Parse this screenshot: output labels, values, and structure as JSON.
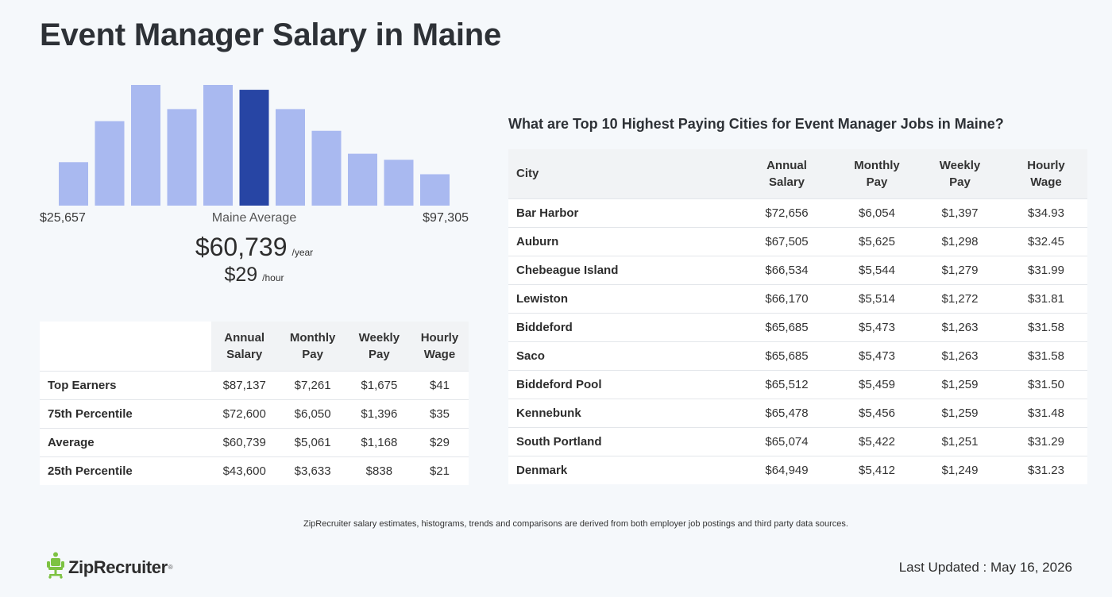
{
  "page": {
    "title": "Event Manager Salary in Maine"
  },
  "histogram": {
    "min_label": "$25,657",
    "max_label": "$97,305",
    "mid_label": "Maine Average",
    "colors": {
      "bar": "#a9b9f0",
      "highlight": "#2745a4"
    }
  },
  "chart_data": {
    "type": "bar",
    "title": "",
    "categories": [
      "1",
      "2",
      "3",
      "4",
      "5",
      "6",
      "7",
      "8",
      "9",
      "10",
      "11"
    ],
    "values": [
      36,
      70,
      100,
      80,
      100,
      96,
      80,
      62,
      43,
      38,
      26
    ],
    "highlight_index": 5,
    "xlabel": "",
    "ylabel": "",
    "ylim": [
      0,
      100
    ],
    "grid": false
  },
  "average": {
    "yearly": "$60,739",
    "yearly_unit": "/year",
    "hourly": "$29",
    "hourly_unit": "/hour"
  },
  "percentile_table": {
    "headers": [
      {
        "l1": "Annual",
        "l2": "Salary"
      },
      {
        "l1": "Monthly",
        "l2": "Pay"
      },
      {
        "l1": "Weekly",
        "l2": "Pay"
      },
      {
        "l1": "Hourly",
        "l2": "Wage"
      }
    ],
    "rows": [
      {
        "label": "Top Earners",
        "annual": "$87,137",
        "monthly": "$7,261",
        "weekly": "$1,675",
        "hourly": "$41"
      },
      {
        "label": "75th Percentile",
        "annual": "$72,600",
        "monthly": "$6,050",
        "weekly": "$1,396",
        "hourly": "$35"
      },
      {
        "label": "Average",
        "annual": "$60,739",
        "monthly": "$5,061",
        "weekly": "$1,168",
        "hourly": "$29"
      },
      {
        "label": "25th Percentile",
        "annual": "$43,600",
        "monthly": "$3,633",
        "weekly": "$838",
        "hourly": "$21"
      }
    ]
  },
  "cities": {
    "heading": "What are Top 10 Highest Paying Cities for Event Manager Jobs in Maine?",
    "headers": {
      "city": "City",
      "cols": [
        {
          "l1": "Annual",
          "l2": "Salary"
        },
        {
          "l1": "Monthly",
          "l2": "Pay"
        },
        {
          "l1": "Weekly",
          "l2": "Pay"
        },
        {
          "l1": "Hourly",
          "l2": "Wage"
        }
      ]
    },
    "rows": [
      {
        "city": "Bar Harbor",
        "annual": "$72,656",
        "monthly": "$6,054",
        "weekly": "$1,397",
        "hourly": "$34.93"
      },
      {
        "city": "Auburn",
        "annual": "$67,505",
        "monthly": "$5,625",
        "weekly": "$1,298",
        "hourly": "$32.45"
      },
      {
        "city": "Chebeague Island",
        "annual": "$66,534",
        "monthly": "$5,544",
        "weekly": "$1,279",
        "hourly": "$31.99"
      },
      {
        "city": "Lewiston",
        "annual": "$66,170",
        "monthly": "$5,514",
        "weekly": "$1,272",
        "hourly": "$31.81"
      },
      {
        "city": "Biddeford",
        "annual": "$65,685",
        "monthly": "$5,473",
        "weekly": "$1,263",
        "hourly": "$31.58"
      },
      {
        "city": "Saco",
        "annual": "$65,685",
        "monthly": "$5,473",
        "weekly": "$1,263",
        "hourly": "$31.58"
      },
      {
        "city": "Biddeford Pool",
        "annual": "$65,512",
        "monthly": "$5,459",
        "weekly": "$1,259",
        "hourly": "$31.50"
      },
      {
        "city": "Kennebunk",
        "annual": "$65,478",
        "monthly": "$5,456",
        "weekly": "$1,259",
        "hourly": "$31.48"
      },
      {
        "city": "South Portland",
        "annual": "$65,074",
        "monthly": "$5,422",
        "weekly": "$1,251",
        "hourly": "$31.29"
      },
      {
        "city": "Denmark",
        "annual": "$64,949",
        "monthly": "$5,412",
        "weekly": "$1,249",
        "hourly": "$31.23"
      }
    ]
  },
  "footer": {
    "disclaimer": "ZipRecruiter salary estimates, histograms, trends and comparisons are derived from both employer job postings and third party data sources.",
    "logo_text": "ZipRecruiter",
    "logo_icon": "ziprecruiter-chair-icon",
    "logo_color": "#7dc242",
    "last_updated": "Last Updated : May 16, 2026"
  }
}
